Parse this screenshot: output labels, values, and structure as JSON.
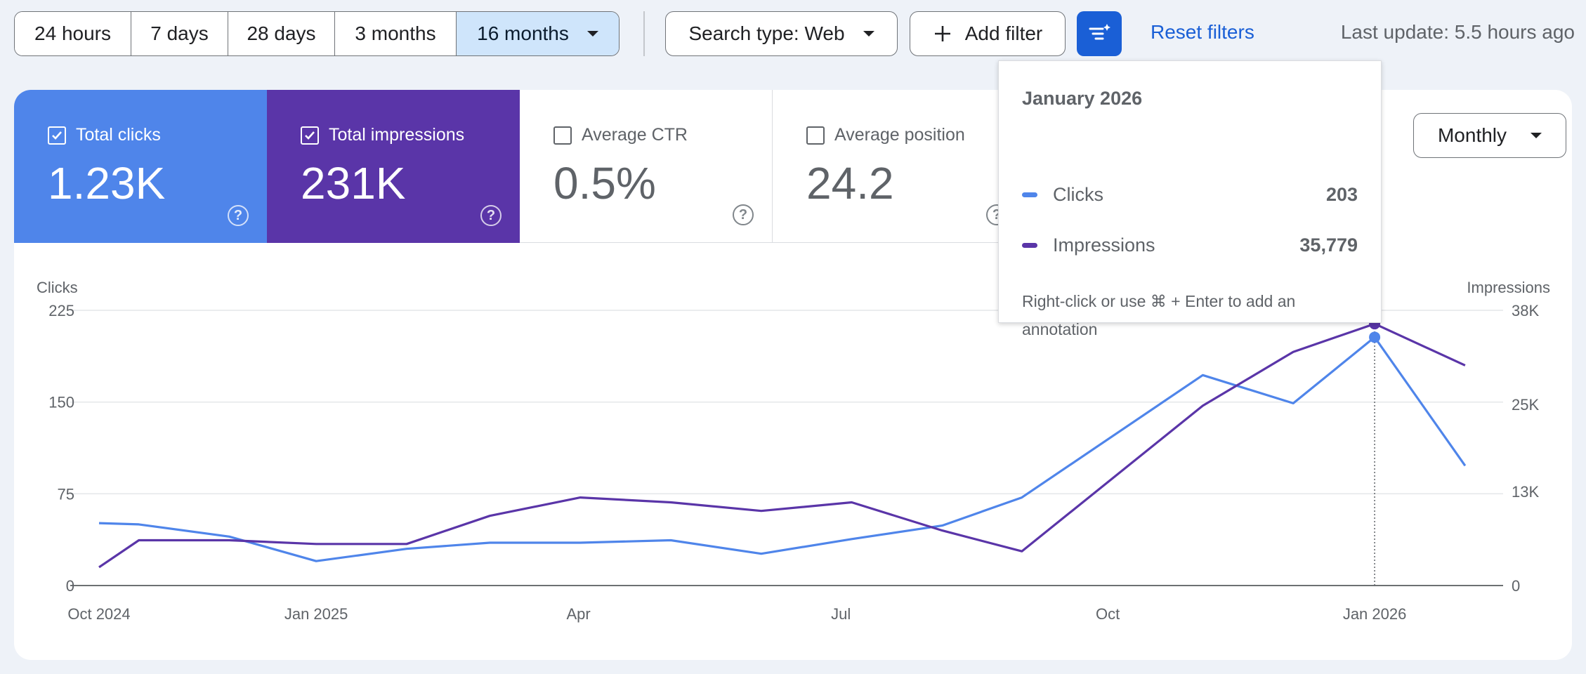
{
  "toolbar": {
    "ranges": [
      "24 hours",
      "7 days",
      "28 days",
      "3 months",
      "16 months"
    ],
    "search_type": "Search type: Web",
    "add_filter": "Add filter",
    "reset_filters": "Reset filters",
    "last_update": "Last update: 5.5 hours ago"
  },
  "metrics": {
    "clicks": {
      "label": "Total clicks",
      "value": "1.23K"
    },
    "impressions": {
      "label": "Total impressions",
      "value": "231K"
    },
    "ctr": {
      "label": "Average CTR",
      "value": "0.5%"
    },
    "position": {
      "label": "Average position",
      "value": "24.2"
    }
  },
  "interval": {
    "value": "Monthly"
  },
  "tooltip": {
    "title": "January 2026",
    "rows": [
      {
        "name": "Clicks",
        "value": "203"
      },
      {
        "name": "Impressions",
        "value": "35,779"
      }
    ],
    "hint": "Right-click or use ⌘ + Enter to add an annotation"
  },
  "colors": {
    "clicks": "#4f85ea",
    "impressions": "#5a35a8"
  },
  "chart_data": {
    "type": "line",
    "left_axis_label": "Clicks",
    "right_axis_label": "Impressions",
    "left_ticks": [
      0,
      75,
      150,
      225
    ],
    "left_tick_labels": [
      "0",
      "75",
      "150",
      "225"
    ],
    "right_ticks": [
      0,
      13000,
      25000,
      38000
    ],
    "right_tick_labels": [
      "0",
      "13K",
      "25K",
      "38K"
    ],
    "ylim_left": [
      0,
      225
    ],
    "ylim_right": [
      0,
      38000
    ],
    "x_labels": [
      {
        "label": "Oct 2024",
        "index": 0
      },
      {
        "label": "Jan 2025",
        "index": 2.4
      },
      {
        "label": "Apr",
        "index": 5.3
      },
      {
        "label": "Jul",
        "index": 8.2
      },
      {
        "label": "Oct",
        "index": 11.15
      },
      {
        "label": "Jan 2026",
        "index": 14.1
      }
    ],
    "highlight_index": 14.1,
    "series": [
      {
        "name": "Clicks",
        "axis": "left",
        "values": [
          [
            0,
            51
          ],
          [
            0.44,
            50
          ],
          [
            1.44,
            40
          ],
          [
            2.4,
            20
          ],
          [
            3.4,
            30
          ],
          [
            4.32,
            35
          ],
          [
            5.32,
            35
          ],
          [
            6.32,
            37
          ],
          [
            7.32,
            26
          ],
          [
            8.32,
            38
          ],
          [
            9.32,
            49
          ],
          [
            10.2,
            72
          ],
          [
            12.2,
            172
          ],
          [
            13.2,
            149
          ],
          [
            14.1,
            203
          ],
          [
            15.1,
            98
          ]
        ]
      },
      {
        "name": "Impressions",
        "axis": "left",
        "values": [
          [
            0,
            15
          ],
          [
            0.44,
            37
          ],
          [
            1.44,
            37
          ],
          [
            2.4,
            34
          ],
          [
            3.4,
            34
          ],
          [
            4.32,
            57
          ],
          [
            5.32,
            72
          ],
          [
            6.32,
            68
          ],
          [
            7.32,
            61
          ],
          [
            8.32,
            68
          ],
          [
            9.32,
            45
          ],
          [
            10.2,
            28
          ],
          [
            12.2,
            147
          ],
          [
            13.2,
            191
          ],
          [
            14.1,
            214
          ],
          [
            15.1,
            180
          ]
        ]
      }
    ]
  }
}
